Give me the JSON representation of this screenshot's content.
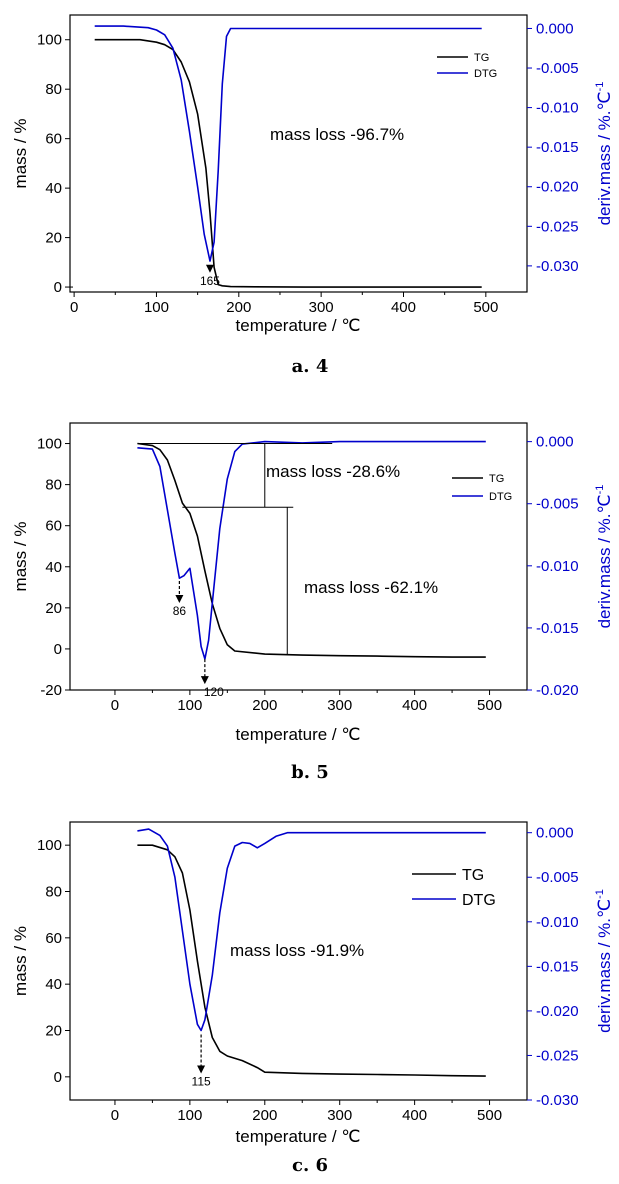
{
  "chart_data": [
    {
      "type": "line",
      "caption": "a.   4",
      "xlabel": "temperature / ℃",
      "ylabel": "mass / %",
      "y2label": "deriv.mass / %.℃",
      "y2label_sup": "-1",
      "xlim": [
        -5,
        550
      ],
      "ylim": [
        -2,
        110
      ],
      "y2lim": [
        -0.0333,
        0.0017
      ],
      "xticks": [
        0,
        100,
        200,
        300,
        400,
        500
      ],
      "yticks": [
        0,
        20,
        40,
        60,
        80,
        100
      ],
      "y2ticks": [
        0.0,
        -0.005,
        -0.01,
        -0.015,
        -0.02,
        -0.025,
        -0.03
      ],
      "y2tick_labels": [
        "0.000",
        "-0.005",
        "-0.010",
        "-0.015",
        "-0.020",
        "-0.025",
        "-0.030"
      ],
      "legend": [
        "TG",
        "DTG"
      ],
      "legend_position": "top-right",
      "annotations": [
        {
          "text": "mass loss -96.7%"
        }
      ],
      "peaks": [
        {
          "label": "165",
          "x": 165,
          "y": 9
        }
      ],
      "series": [
        {
          "name": "TG",
          "axis": "left",
          "color": "#000000",
          "x": [
            25,
            50,
            80,
            100,
            110,
            120,
            130,
            140,
            150,
            160,
            165,
            170,
            175,
            180,
            190,
            220,
            280,
            350,
            420,
            495
          ],
          "y": [
            100,
            100,
            100,
            99,
            98,
            96,
            91,
            83,
            70,
            48,
            30,
            8,
            1,
            0.5,
            0.2,
            0.1,
            0,
            0,
            0,
            0
          ]
        },
        {
          "name": "DTG",
          "axis": "right",
          "color": "#0000cc",
          "x": [
            25,
            60,
            90,
            100,
            110,
            120,
            130,
            140,
            150,
            158,
            165,
            170,
            175,
            180,
            185,
            190,
            250,
            300,
            350,
            400,
            450,
            495
          ],
          "y": [
            0.0003,
            0.0003,
            0.0001,
            -0.0002,
            -0.0008,
            -0.0025,
            -0.0065,
            -0.013,
            -0.02,
            -0.026,
            -0.0294,
            -0.027,
            -0.018,
            -0.007,
            -0.001,
            0.0,
            0.0,
            0.0,
            0.0,
            0.0,
            0.0,
            0.0
          ]
        }
      ]
    },
    {
      "type": "line",
      "caption": "b.   5",
      "xlabel": "temperature / ℃",
      "ylabel": "mass / %",
      "y2label": "deriv.mass / %.℃",
      "y2label_sup": "-1",
      "xlim": [
        -60,
        550
      ],
      "ylim": [
        -20,
        110
      ],
      "y2lim": [
        -0.02,
        0.0015
      ],
      "xticks": [
        0,
        100,
        200,
        300,
        400,
        500
      ],
      "yticks": [
        -20,
        0,
        20,
        40,
        60,
        80,
        100
      ],
      "y2ticks": [
        0.0,
        -0.005,
        -0.01,
        -0.015,
        -0.02
      ],
      "y2tick_labels": [
        "0.000",
        "-0.005",
        "-0.010",
        "-0.015",
        "-0.020"
      ],
      "legend": [
        "TG",
        "DTG"
      ],
      "legend_position": "top-right",
      "annotations": [
        {
          "text": "mass loss -28.6%"
        },
        {
          "text": "mass loss -62.1%"
        }
      ],
      "peaks": [
        {
          "label": "86",
          "x": 86,
          "y": 35
        },
        {
          "label": "120",
          "x": 120,
          "y": -3
        }
      ],
      "series": [
        {
          "name": "TG",
          "axis": "left",
          "color": "#000000",
          "x": [
            30,
            50,
            60,
            70,
            80,
            90,
            100,
            110,
            120,
            130,
            140,
            150,
            160,
            200,
            250,
            300,
            350,
            400,
            450,
            495
          ],
          "y": [
            100,
            99,
            97,
            92,
            82,
            71,
            66,
            55,
            38,
            22,
            10,
            2,
            -1,
            -2.5,
            -3,
            -3.3,
            -3.5,
            -3.8,
            -4,
            -4
          ]
        },
        {
          "name": "DTG",
          "axis": "right",
          "color": "#0000cc",
          "x": [
            30,
            50,
            60,
            70,
            80,
            86,
            92,
            100,
            110,
            115,
            120,
            125,
            130,
            140,
            150,
            160,
            170,
            200,
            250,
            300,
            400,
            495
          ],
          "y": [
            -0.0005,
            -0.0006,
            -0.002,
            -0.0055,
            -0.009,
            -0.011,
            -0.0108,
            -0.0102,
            -0.014,
            -0.0165,
            -0.0175,
            -0.016,
            -0.013,
            -0.007,
            -0.003,
            -0.0008,
            -0.0002,
            0.0,
            -0.0001,
            0.0,
            0.0,
            0.0
          ]
        }
      ]
    },
    {
      "type": "line",
      "caption": "c.   6",
      "xlabel": "temperature / ℃",
      "ylabel": "mass / %",
      "y2label": "deriv.mass / %.℃",
      "y2label_sup": "-1",
      "xlim": [
        -60,
        550
      ],
      "ylim": [
        -10,
        110
      ],
      "y2lim": [
        -0.03,
        0.0012
      ],
      "xticks": [
        0,
        100,
        200,
        300,
        400,
        500
      ],
      "yticks": [
        0,
        20,
        40,
        60,
        80,
        100
      ],
      "y2ticks": [
        0.0,
        -0.005,
        -0.01,
        -0.015,
        -0.02,
        -0.025,
        -0.03
      ],
      "y2tick_labels": [
        "0.000",
        "-0.005",
        "-0.010",
        "-0.015",
        "-0.020",
        "-0.025",
        "-0.030"
      ],
      "legend": [
        "TG",
        "DTG"
      ],
      "legend_position": "top-right",
      "annotations": [
        {
          "text": "mass loss -91.9%"
        }
      ],
      "peaks": [
        {
          "label": "115",
          "x": 115,
          "y": 20
        }
      ],
      "series": [
        {
          "name": "TG",
          "axis": "left",
          "color": "#000000",
          "x": [
            30,
            50,
            70,
            80,
            90,
            100,
            110,
            120,
            130,
            140,
            150,
            170,
            190,
            200,
            250,
            300,
            350,
            400,
            450,
            495
          ],
          "y": [
            100,
            100,
            98,
            95,
            88,
            72,
            50,
            30,
            17,
            11,
            9,
            7,
            4,
            2,
            1.5,
            1.2,
            1,
            0.8,
            0.5,
            0.3
          ]
        },
        {
          "name": "DTG",
          "axis": "right",
          "color": "#0000cc",
          "x": [
            30,
            45,
            60,
            70,
            80,
            90,
            100,
            110,
            115,
            120,
            130,
            140,
            150,
            160,
            170,
            180,
            190,
            200,
            215,
            230,
            300,
            400,
            495
          ],
          "y": [
            0.0002,
            0.0004,
            -0.0003,
            -0.0015,
            -0.005,
            -0.011,
            -0.017,
            -0.0215,
            -0.0222,
            -0.021,
            -0.016,
            -0.009,
            -0.004,
            -0.0015,
            -0.0011,
            -0.0012,
            -0.0017,
            -0.0012,
            -0.0004,
            0.0,
            0.0,
            0.0,
            0.0
          ]
        }
      ]
    }
  ]
}
